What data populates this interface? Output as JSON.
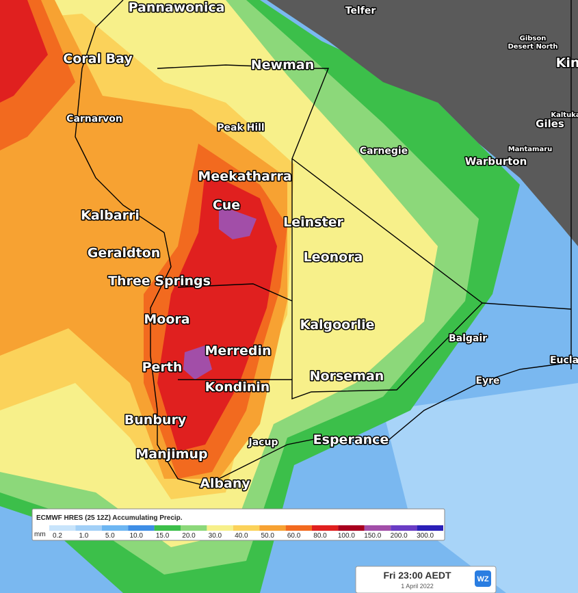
{
  "map": {
    "labels": [
      {
        "text": "Pannawonica",
        "size": "large"
      },
      {
        "text": "Telfer",
        "size": "small"
      },
      {
        "text": "Gibson",
        "size": "tiny"
      },
      {
        "text": "Desert North",
        "size": "tiny"
      },
      {
        "text": "Coral Bay",
        "size": "large"
      },
      {
        "text": "Newman",
        "size": "large"
      },
      {
        "text": "Kin",
        "size": "large"
      },
      {
        "text": "Carnarvon",
        "size": "small"
      },
      {
        "text": "Peak Hill",
        "size": "small"
      },
      {
        "text": "Kaltuka",
        "size": "tiny"
      },
      {
        "text": "Giles",
        "size": "medium"
      },
      {
        "text": "Carnegie",
        "size": "small"
      },
      {
        "text": "Mantamaru",
        "size": "tiny"
      },
      {
        "text": "Warburton",
        "size": "medium"
      },
      {
        "text": "Meekatharra",
        "size": "large"
      },
      {
        "text": "Cue",
        "size": "large"
      },
      {
        "text": "Kalbarri",
        "size": "large"
      },
      {
        "text": "Leinster",
        "size": "large"
      },
      {
        "text": "Geraldton",
        "size": "large"
      },
      {
        "text": "Leonora",
        "size": "large"
      },
      {
        "text": "Three Springs",
        "size": "large"
      },
      {
        "text": "Moora",
        "size": "large"
      },
      {
        "text": "Kalgoorlie",
        "size": "large"
      },
      {
        "text": "Balgair",
        "size": "small"
      },
      {
        "text": "Merredin",
        "size": "large"
      },
      {
        "text": "Eucla",
        "size": "small"
      },
      {
        "text": "Perth",
        "size": "large"
      },
      {
        "text": "Norseman",
        "size": "large"
      },
      {
        "text": "Eyre",
        "size": "small"
      },
      {
        "text": "Kondinin",
        "size": "large"
      },
      {
        "text": "Bunbury",
        "size": "large"
      },
      {
        "text": "Jacup",
        "size": "small"
      },
      {
        "text": "Esperance",
        "size": "large"
      },
      {
        "text": "Manjimup",
        "size": "large"
      },
      {
        "text": "Albany",
        "size": "large"
      }
    ]
  },
  "legend": {
    "title": "ECMWF HRES (25 12Z) Accumulating Precip.",
    "unit": "mm",
    "scale": [
      {
        "label": "0.2",
        "color": "#c8e4fb"
      },
      {
        "label": "1.0",
        "color": "#a2d0f7"
      },
      {
        "label": "5.0",
        "color": "#6db6f2"
      },
      {
        "label": "10.0",
        "color": "#3e8ee6"
      },
      {
        "label": "15.0",
        "color": "#3cbf4a"
      },
      {
        "label": "20.0",
        "color": "#8cd87a"
      },
      {
        "label": "30.0",
        "color": "#f7f08a"
      },
      {
        "label": "40.0",
        "color": "#fbd25a"
      },
      {
        "label": "50.0",
        "color": "#f7a232"
      },
      {
        "label": "60.0",
        "color": "#f26a1f"
      },
      {
        "label": "80.0",
        "color": "#e0201f"
      },
      {
        "label": "100.0",
        "color": "#a8001e"
      },
      {
        "label": "150.0",
        "color": "#a24ea8"
      },
      {
        "label": "200.0",
        "color": "#6a3cc4"
      },
      {
        "label": "300.0",
        "color": "#2a1fb8"
      }
    ]
  },
  "timestamp": {
    "time": "Fri 23:00 AEDT",
    "date": "1 April 2022",
    "logo": "WZ"
  }
}
